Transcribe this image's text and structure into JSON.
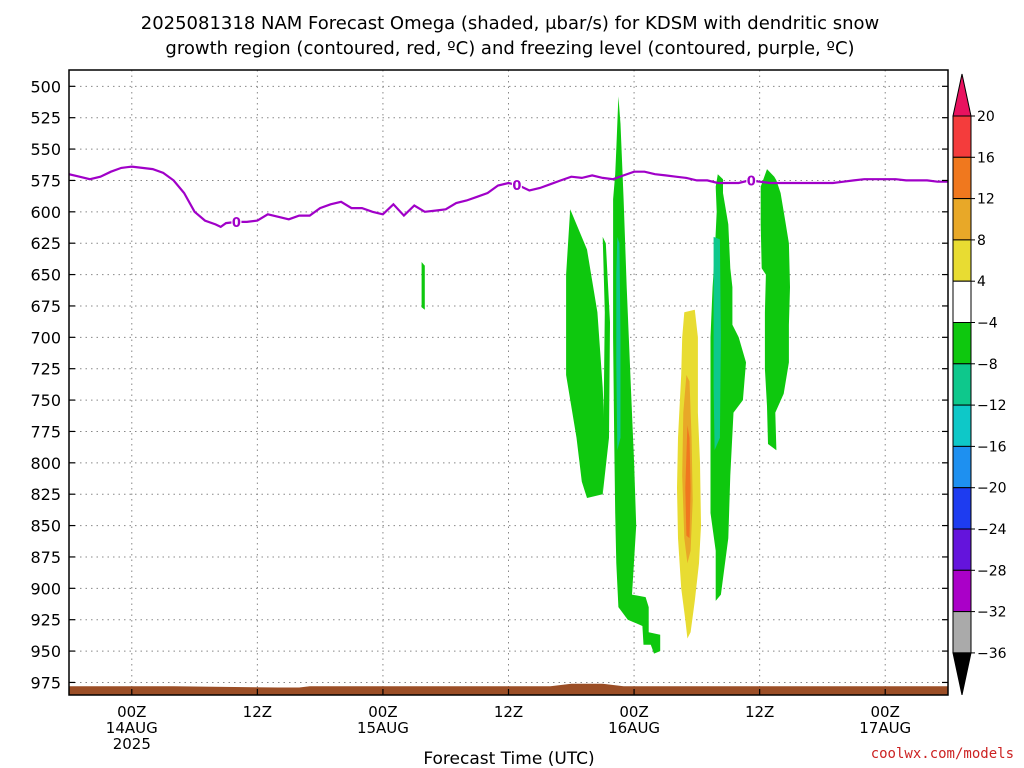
{
  "title_line1": "2025081318 NAM Forecast Omega (shaded, μbar/s) for KDSM with dendritic snow",
  "title_line2": "growth region (contoured, red, ºC) and freezing level (contoured, purple, ºC)",
  "credit": "coolwx.com/models",
  "colors": {
    "freezing_level": "#a000c8",
    "terrain": "#9b4e26",
    "grid": "#888888"
  },
  "chart_data": {
    "type": "area",
    "xlabel": "Forecast Time (UTC)",
    "yaxis": {
      "inverted": true,
      "range_hpa": [
        487,
        985
      ],
      "ticks": [
        500,
        525,
        550,
        575,
        600,
        625,
        650,
        675,
        700,
        725,
        750,
        775,
        800,
        825,
        850,
        875,
        900,
        925,
        950,
        975
      ]
    },
    "xaxis": {
      "range_hours": [
        -6,
        78
      ],
      "ticks": [
        {
          "h": 0,
          "lines": [
            "00Z",
            "14AUG",
            "2025"
          ]
        },
        {
          "h": 12,
          "lines": [
            "12Z"
          ]
        },
        {
          "h": 24,
          "lines": [
            "00Z",
            "15AUG"
          ]
        },
        {
          "h": 36,
          "lines": [
            "12Z"
          ]
        },
        {
          "h": 48,
          "lines": [
            "00Z",
            "16AUG"
          ]
        },
        {
          "h": 60,
          "lines": [
            "12Z"
          ]
        },
        {
          "h": 72,
          "lines": [
            "00Z",
            "17AUG"
          ]
        }
      ]
    },
    "colorbar": {
      "levels": [
        20,
        16,
        12,
        8,
        4,
        -4,
        -8,
        -12,
        -16,
        -20,
        -24,
        -28,
        -32,
        -36
      ],
      "colors": [
        "#e8125f",
        "#f43c3c",
        "#f0781e",
        "#e8a828",
        "#e8dc32",
        "#ffffff",
        "#0ec80e",
        "#0ec88c",
        "#0ec8c8",
        "#1e90f0",
        "#1e3cf0",
        "#6414dc",
        "#aa00c8",
        "#aaaaaa",
        "#000000"
      ]
    },
    "freezing_level": {
      "label": "0",
      "label_hours": [
        10,
        36.8,
        59.2
      ],
      "points": [
        [
          -6,
          570
        ],
        [
          -5,
          572
        ],
        [
          -4,
          574
        ],
        [
          -3,
          572
        ],
        [
          -2,
          568
        ],
        [
          -1,
          565
        ],
        [
          0,
          564
        ],
        [
          1,
          565
        ],
        [
          2,
          566
        ],
        [
          3,
          569
        ],
        [
          4,
          575
        ],
        [
          5,
          585
        ],
        [
          6,
          600
        ],
        [
          7,
          607
        ],
        [
          8,
          610
        ],
        [
          8.5,
          612
        ],
        [
          9,
          609
        ],
        [
          10,
          608
        ],
        [
          11,
          608
        ],
        [
          12,
          607
        ],
        [
          13,
          602
        ],
        [
          14,
          604
        ],
        [
          15,
          606
        ],
        [
          16,
          603
        ],
        [
          17,
          603
        ],
        [
          18,
          597
        ],
        [
          19,
          594
        ],
        [
          20,
          592
        ],
        [
          21,
          597
        ],
        [
          22,
          597
        ],
        [
          23,
          600
        ],
        [
          24,
          602
        ],
        [
          25,
          594
        ],
        [
          26,
          603
        ],
        [
          27,
          595
        ],
        [
          28,
          600
        ],
        [
          29,
          599
        ],
        [
          30,
          598
        ],
        [
          31,
          593
        ],
        [
          32,
          591
        ],
        [
          33,
          588
        ],
        [
          34,
          585
        ],
        [
          35,
          579
        ],
        [
          36,
          577
        ],
        [
          37,
          579
        ],
        [
          38,
          583
        ],
        [
          39,
          581
        ],
        [
          40,
          578
        ],
        [
          41,
          575
        ],
        [
          42,
          572
        ],
        [
          43,
          573
        ],
        [
          44,
          571
        ],
        [
          45,
          573
        ],
        [
          46,
          574
        ],
        [
          47,
          571
        ],
        [
          48,
          568
        ],
        [
          49,
          568
        ],
        [
          50,
          570
        ],
        [
          51,
          571
        ],
        [
          52,
          572
        ],
        [
          53,
          573
        ],
        [
          54,
          575
        ],
        [
          55,
          575
        ],
        [
          56,
          577
        ],
        [
          57,
          577
        ],
        [
          58,
          577
        ],
        [
          59,
          575
        ],
        [
          60,
          576
        ],
        [
          61,
          577
        ],
        [
          62,
          577
        ],
        [
          63,
          577
        ],
        [
          64,
          577
        ],
        [
          65,
          577
        ],
        [
          66,
          577
        ],
        [
          67,
          577
        ],
        [
          68,
          576
        ],
        [
          69,
          575
        ],
        [
          70,
          574
        ],
        [
          71,
          574
        ],
        [
          72,
          574
        ],
        [
          73,
          574
        ],
        [
          74,
          575
        ],
        [
          75,
          575
        ],
        [
          76,
          575
        ],
        [
          77,
          576
        ],
        [
          78,
          576
        ]
      ]
    },
    "omega_regions": [
      {
        "level": "-4",
        "polygon": [
          [
            27.7,
            640
          ],
          [
            28,
            643
          ],
          [
            28,
            678
          ],
          [
            27.7,
            676
          ]
        ]
      },
      {
        "level": "-4",
        "polygon": [
          [
            41.9,
            598
          ],
          [
            43.5,
            630
          ],
          [
            44.5,
            680
          ],
          [
            45,
            740
          ],
          [
            45.2,
            780
          ],
          [
            45,
            825
          ],
          [
            43.5,
            828
          ],
          [
            43,
            815
          ],
          [
            42.5,
            780
          ],
          [
            41.5,
            730
          ],
          [
            41.5,
            650
          ]
        ]
      },
      {
        "level": "-4",
        "polygon": [
          [
            45,
            620
          ],
          [
            45.3,
            625
          ],
          [
            45.7,
            688
          ],
          [
            45.6,
            780
          ],
          [
            45,
            825
          ],
          [
            45.2,
            680
          ]
        ]
      },
      {
        "level": "-4",
        "polygon": [
          [
            46,
            610
          ],
          [
            46,
            590
          ],
          [
            46.2,
            570
          ],
          [
            46.3,
            550
          ],
          [
            46.5,
            508
          ],
          [
            46.7,
            530
          ],
          [
            47,
            590
          ],
          [
            47.3,
            660
          ],
          [
            47.7,
            740
          ],
          [
            48,
            800
          ],
          [
            48.2,
            850
          ],
          [
            47.8,
            905
          ],
          [
            49.1,
            907
          ],
          [
            49.4,
            915
          ],
          [
            49.4,
            935
          ],
          [
            50.5,
            937
          ],
          [
            50.5,
            950
          ],
          [
            49.9,
            952
          ],
          [
            49.6,
            945
          ],
          [
            48.9,
            945
          ],
          [
            48.8,
            930
          ],
          [
            47.4,
            925
          ],
          [
            46.5,
            915
          ],
          [
            46.3,
            880
          ],
          [
            46.2,
            840
          ],
          [
            46.1,
            780
          ],
          [
            46,
            700
          ]
        ]
      },
      {
        "level": "-8",
        "polygon": [
          [
            46.4,
            620
          ],
          [
            46.6,
            625
          ],
          [
            46.7,
            700
          ],
          [
            46.7,
            780
          ],
          [
            46.4,
            790
          ],
          [
            46.3,
            720
          ],
          [
            46.3,
            650
          ]
        ]
      },
      {
        "level": "-4",
        "polygon": [
          [
            56,
            570
          ],
          [
            56.5,
            574
          ],
          [
            56.5,
            585
          ],
          [
            57,
            610
          ],
          [
            57.2,
            645
          ],
          [
            57.4,
            660
          ],
          [
            57.4,
            690
          ],
          [
            58,
            700
          ],
          [
            58.7,
            720
          ],
          [
            58.4,
            750
          ],
          [
            57.5,
            760
          ],
          [
            57.2,
            810
          ],
          [
            57,
            860
          ],
          [
            56.3,
            905
          ],
          [
            55.8,
            910
          ],
          [
            55.8,
            870
          ],
          [
            55.3,
            840
          ],
          [
            55.3,
            800
          ],
          [
            55.3,
            740
          ],
          [
            55.3,
            700
          ],
          [
            55.5,
            660
          ],
          [
            55.7,
            635
          ],
          [
            55.9,
            600
          ],
          [
            55.8,
            580
          ]
        ]
      },
      {
        "level": "-8",
        "polygon": [
          [
            55.6,
            620
          ],
          [
            56.2,
            622
          ],
          [
            56.3,
            700
          ],
          [
            56.2,
            780
          ],
          [
            55.7,
            790
          ],
          [
            55.6,
            740
          ],
          [
            55.6,
            680
          ]
        ]
      },
      {
        "level": "-4",
        "polygon": [
          [
            60.7,
            566
          ],
          [
            61.4,
            572
          ],
          [
            61.6,
            575
          ],
          [
            62,
            585
          ],
          [
            62.4,
            605
          ],
          [
            62.8,
            625
          ],
          [
            62.9,
            660
          ],
          [
            62.8,
            690
          ],
          [
            62.8,
            720
          ],
          [
            62.3,
            745
          ],
          [
            61.5,
            760
          ],
          [
            61.6,
            790
          ],
          [
            60.8,
            785
          ],
          [
            60.7,
            755
          ],
          [
            60.5,
            725
          ],
          [
            60.5,
            680
          ],
          [
            60.6,
            650
          ],
          [
            60.2,
            645
          ],
          [
            60.1,
            610
          ],
          [
            60.1,
            580
          ]
        ]
      },
      {
        "level": "4",
        "polygon": [
          [
            52.8,
            680
          ],
          [
            53.8,
            678
          ],
          [
            54.1,
            700
          ],
          [
            54.1,
            760
          ],
          [
            54.3,
            800
          ],
          [
            54.4,
            850
          ],
          [
            54.2,
            880
          ],
          [
            53.8,
            910
          ],
          [
            53.4,
            935
          ],
          [
            53.1,
            940
          ],
          [
            52.9,
            925
          ],
          [
            52.5,
            900
          ],
          [
            52.2,
            860
          ],
          [
            52.1,
            820
          ],
          [
            52.2,
            780
          ],
          [
            52.5,
            730
          ],
          [
            52.6,
            700
          ]
        ]
      },
      {
        "level": "8",
        "polygon": [
          [
            53,
            730
          ],
          [
            53.3,
            735
          ],
          [
            53.5,
            780
          ],
          [
            53.6,
            830
          ],
          [
            53.4,
            870
          ],
          [
            53.1,
            880
          ],
          [
            52.8,
            860
          ],
          [
            52.6,
            810
          ],
          [
            52.7,
            760
          ]
        ]
      },
      {
        "level": "12",
        "polygon": [
          [
            53.1,
            770
          ],
          [
            53.3,
            780
          ],
          [
            53.4,
            820
          ],
          [
            53.3,
            860
          ],
          [
            53,
            858
          ],
          [
            52.9,
            820
          ]
        ]
      }
    ],
    "terrain_profile": [
      [
        -6,
        978
      ],
      [
        4,
        978
      ],
      [
        14,
        979
      ],
      [
        16,
        979
      ],
      [
        17,
        978
      ],
      [
        40,
        978
      ],
      [
        42,
        976
      ],
      [
        45,
        976
      ],
      [
        47,
        978
      ],
      [
        78,
        978
      ]
    ]
  }
}
